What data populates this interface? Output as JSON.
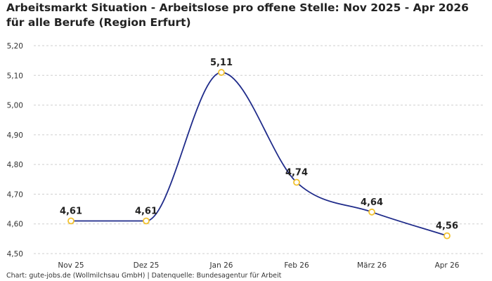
{
  "title": "Arbeitsmarkt Situation - Arbeitslose pro offene Stelle: Nov 2025 - Apr 2026 für alle Berufe (Region Erfurt)",
  "footer": "Chart: gute-jobs.de (Wollmilchsau GmbH) | Datenquelle: Bundesagentur für Arbeit",
  "chart_data": {
    "type": "line",
    "categories": [
      "Nov 25",
      "Dez 25",
      "Jan 26",
      "Feb 26",
      "März 26",
      "Apr 26"
    ],
    "series": [
      {
        "values": [
          4.61,
          4.61,
          5.11,
          4.74,
          4.64,
          4.56
        ],
        "labels": [
          "4,61",
          "4,61",
          "5,11",
          "4,74",
          "4,64",
          "4,56"
        ]
      }
    ],
    "yticks": [
      "4,50",
      "4,60",
      "4,70",
      "4,80",
      "4,90",
      "5,00",
      "5,10",
      "5,20"
    ],
    "ylim": [
      4.5,
      5.2
    ],
    "grid": true,
    "line_color": "#1f2b8a",
    "marker_color": "#f2c230"
  }
}
